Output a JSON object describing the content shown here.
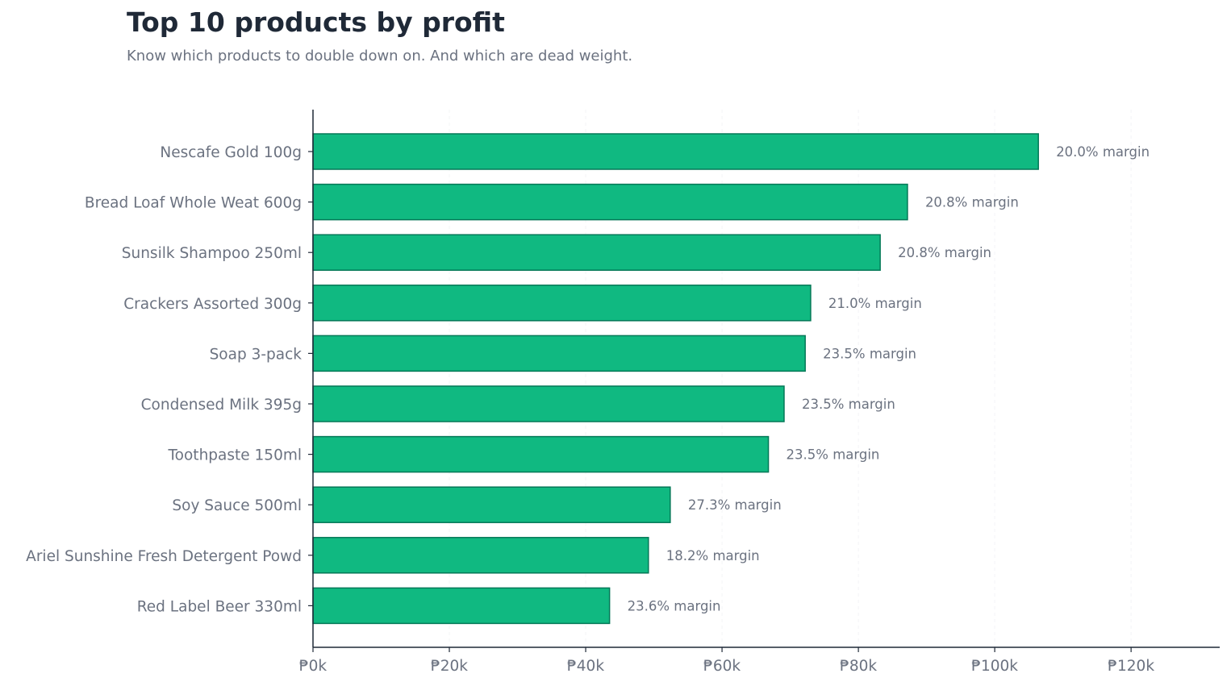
{
  "title": "Top 10 products by profit",
  "subtitle": "Know which products to double down on. And which are dead weight.",
  "colors": {
    "bar_fill": "#10b981",
    "bar_stroke": "#047857",
    "axis": "#1f2937",
    "text": "#6b7280",
    "grid": "#f3f4f6"
  },
  "chart_data": {
    "type": "bar",
    "orientation": "horizontal",
    "title": "Top 10 products by profit",
    "subtitle": "Know which products to double down on. And which are dead weight.",
    "categories": [
      "Nescafe Gold 100g",
      "Bread Loaf Whole Weat 600g",
      "Sunsilk Shampoo 250ml",
      "Crackers Assorted 300g",
      "Soap 3-pack",
      "Condensed Milk 395g",
      "Toothpaste 150ml",
      "Soy Sauce 500ml",
      "Ariel Sunshine Fresh Detergent Powd",
      "Red Label Beer 330ml"
    ],
    "values": [
      106400,
      87200,
      83200,
      73000,
      72200,
      69100,
      66800,
      52400,
      49200,
      43500
    ],
    "data_labels": [
      "20.0% margin",
      "20.8% margin",
      "20.8% margin",
      "21.0% margin",
      "23.5% margin",
      "23.5% margin",
      "23.5% margin",
      "27.3% margin",
      "18.2% margin",
      "23.6% margin"
    ],
    "xlim": [
      0,
      133000
    ],
    "x_ticks": [
      0,
      20000,
      40000,
      60000,
      80000,
      100000,
      120000
    ],
    "x_tick_labels": [
      "₱0k",
      "₱20k",
      "₱40k",
      "₱60k",
      "₱80k",
      "₱100k",
      "₱120k"
    ],
    "xlabel": "",
    "ylabel": "",
    "grid": "vertical-dashed",
    "legend": "none"
  }
}
